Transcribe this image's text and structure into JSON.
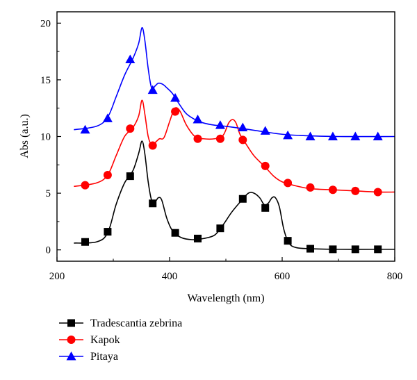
{
  "chart_data": {
    "type": "line",
    "title": "",
    "xlabel": "Wavelength (nm)",
    "ylabel": "Abs (a.u.)",
    "xlim": [
      200,
      800
    ],
    "ylim": [
      -1,
      21
    ],
    "xticks": [
      200,
      400,
      600,
      800
    ],
    "yticks": [
      0,
      5,
      10,
      15,
      20
    ],
    "grid": false,
    "legend": "bottom-left",
    "series": [
      {
        "name": "Tradescantia zebrina",
        "color": "#000000",
        "marker": "square",
        "curve": [
          [
            230,
            0.6
          ],
          [
            270,
            0.7
          ],
          [
            290,
            1.5
          ],
          [
            305,
            4.0
          ],
          [
            320,
            5.9
          ],
          [
            335,
            7.0
          ],
          [
            345,
            8.5
          ],
          [
            351,
            9.6
          ],
          [
            356,
            8.5
          ],
          [
            362,
            6.0
          ],
          [
            368,
            4.4
          ],
          [
            375,
            4.3
          ],
          [
            380,
            4.6
          ],
          [
            386,
            4.4
          ],
          [
            395,
            2.8
          ],
          [
            405,
            1.7
          ],
          [
            420,
            1.1
          ],
          [
            440,
            0.9
          ],
          [
            460,
            1.0
          ],
          [
            480,
            1.3
          ],
          [
            495,
            2.2
          ],
          [
            510,
            3.3
          ],
          [
            525,
            4.2
          ],
          [
            540,
            5.0
          ],
          [
            550,
            5.0
          ],
          [
            560,
            4.6
          ],
          [
            568,
            4.0
          ],
          [
            575,
            4.1
          ],
          [
            582,
            4.6
          ],
          [
            588,
            4.6
          ],
          [
            595,
            3.8
          ],
          [
            603,
            1.8
          ],
          [
            612,
            0.6
          ],
          [
            625,
            0.2
          ],
          [
            650,
            0.1
          ],
          [
            700,
            0.05
          ],
          [
            770,
            0.05
          ],
          [
            800,
            0.05
          ]
        ],
        "markers": [
          [
            250,
            0.7
          ],
          [
            290,
            1.6
          ],
          [
            330,
            6.5
          ],
          [
            370,
            4.1
          ],
          [
            410,
            1.5
          ],
          [
            450,
            1.0
          ],
          [
            490,
            1.9
          ],
          [
            530,
            4.5
          ],
          [
            570,
            3.7
          ],
          [
            610,
            0.8
          ],
          [
            650,
            0.1
          ],
          [
            690,
            0.05
          ],
          [
            730,
            0.05
          ],
          [
            770,
            0.05
          ]
        ]
      },
      {
        "name": "Kapok",
        "color": "#ff0000",
        "marker": "circle",
        "curve": [
          [
            230,
            5.6
          ],
          [
            270,
            5.9
          ],
          [
            290,
            6.6
          ],
          [
            305,
            8.3
          ],
          [
            320,
            10.0
          ],
          [
            335,
            10.8
          ],
          [
            345,
            11.8
          ],
          [
            351,
            13.2
          ],
          [
            356,
            12.0
          ],
          [
            362,
            10.0
          ],
          [
            368,
            9.3
          ],
          [
            375,
            9.5
          ],
          [
            382,
            9.8
          ],
          [
            390,
            9.9
          ],
          [
            400,
            11.3
          ],
          [
            408,
            12.4
          ],
          [
            414,
            12.5
          ],
          [
            420,
            12.1
          ],
          [
            430,
            11.0
          ],
          [
            445,
            10.0
          ],
          [
            460,
            9.8
          ],
          [
            480,
            9.8
          ],
          [
            495,
            10.1
          ],
          [
            505,
            11.2
          ],
          [
            512,
            11.5
          ],
          [
            518,
            11.2
          ],
          [
            525,
            10.2
          ],
          [
            535,
            9.4
          ],
          [
            550,
            8.3
          ],
          [
            570,
            7.3
          ],
          [
            585,
            6.5
          ],
          [
            600,
            6.0
          ],
          [
            620,
            5.7
          ],
          [
            650,
            5.4
          ],
          [
            690,
            5.3
          ],
          [
            730,
            5.2
          ],
          [
            770,
            5.1
          ],
          [
            800,
            5.1
          ]
        ],
        "markers": [
          [
            250,
            5.7
          ],
          [
            290,
            6.6
          ],
          [
            330,
            10.7
          ],
          [
            370,
            9.2
          ],
          [
            410,
            12.2
          ],
          [
            450,
            9.8
          ],
          [
            490,
            9.8
          ],
          [
            530,
            9.7
          ],
          [
            570,
            7.4
          ],
          [
            610,
            5.9
          ],
          [
            650,
            5.5
          ],
          [
            690,
            5.3
          ],
          [
            730,
            5.2
          ],
          [
            770,
            5.1
          ]
        ]
      },
      {
        "name": "Pitaya",
        "color": "#0000ff",
        "marker": "triangle",
        "curve": [
          [
            230,
            10.6
          ],
          [
            270,
            10.9
          ],
          [
            290,
            11.7
          ],
          [
            305,
            13.5
          ],
          [
            320,
            15.4
          ],
          [
            335,
            16.9
          ],
          [
            345,
            18.2
          ],
          [
            351,
            19.6
          ],
          [
            356,
            18.5
          ],
          [
            362,
            16.0
          ],
          [
            368,
            14.3
          ],
          [
            375,
            14.5
          ],
          [
            380,
            14.7
          ],
          [
            388,
            14.6
          ],
          [
            395,
            14.3
          ],
          [
            405,
            13.8
          ],
          [
            418,
            12.8
          ],
          [
            430,
            12.0
          ],
          [
            445,
            11.5
          ],
          [
            460,
            11.2
          ],
          [
            480,
            11.0
          ],
          [
            500,
            10.9
          ],
          [
            515,
            10.8
          ],
          [
            530,
            10.7
          ],
          [
            550,
            10.55
          ],
          [
            570,
            10.4
          ],
          [
            600,
            10.2
          ],
          [
            630,
            10.1
          ],
          [
            700,
            10.0
          ],
          [
            800,
            10.0
          ]
        ],
        "markers": [
          [
            250,
            10.6
          ],
          [
            290,
            11.6
          ],
          [
            330,
            16.8
          ],
          [
            370,
            14.1
          ],
          [
            410,
            13.4
          ],
          [
            450,
            11.5
          ],
          [
            490,
            11.0
          ],
          [
            530,
            10.8
          ],
          [
            570,
            10.5
          ],
          [
            610,
            10.1
          ],
          [
            650,
            10.0
          ],
          [
            690,
            10.0
          ],
          [
            730,
            10.0
          ],
          [
            770,
            10.0
          ]
        ]
      }
    ]
  }
}
